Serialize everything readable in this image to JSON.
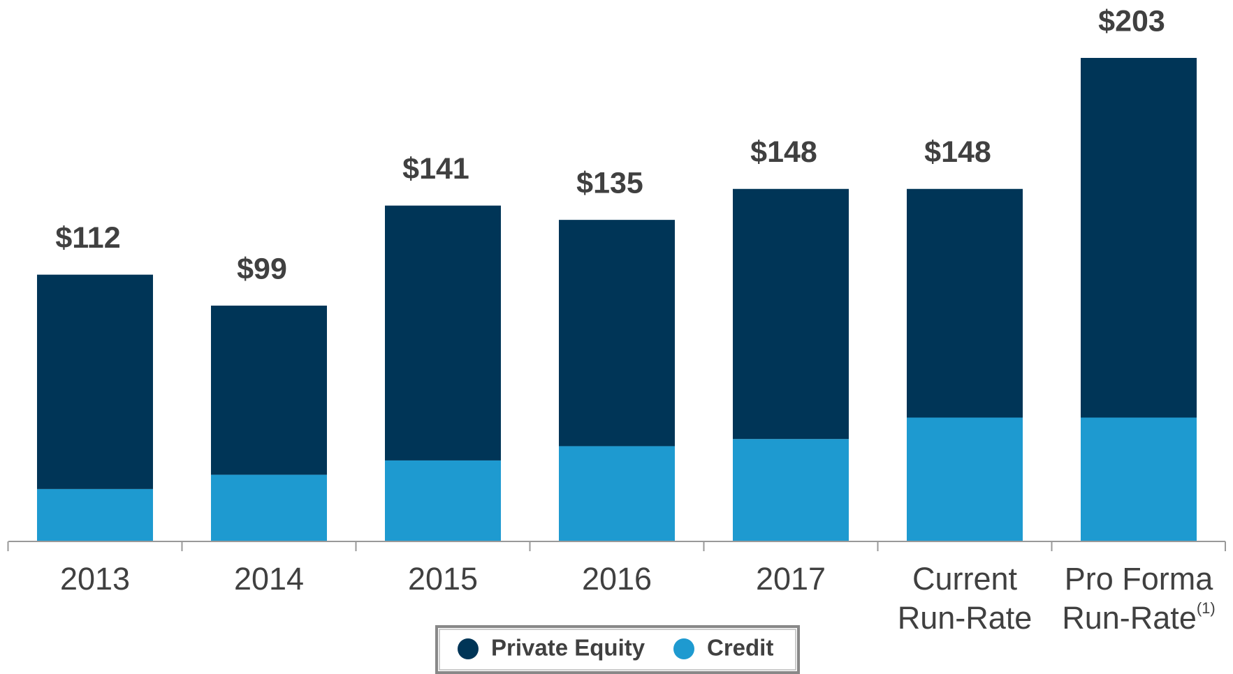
{
  "chart_data": {
    "type": "stacked_bar",
    "categories": [
      "2013",
      "2014",
      "2015",
      "2016",
      "2017",
      "Current\nRun-Rate",
      "Pro Forma\nRun-Rate"
    ],
    "category_notes": [
      null,
      null,
      null,
      null,
      null,
      null,
      "(1)"
    ],
    "series": [
      {
        "name": "Credit",
        "color": "#1e9ad0",
        "values": [
          22,
          28,
          34,
          40,
          43,
          52,
          52
        ]
      },
      {
        "name": "Private Equity",
        "color": "#003557",
        "values": [
          90,
          71,
          107,
          95,
          105,
          96,
          151
        ]
      }
    ],
    "total_values": [
      112,
      99,
      141,
      135,
      148,
      148,
      203
    ],
    "total_labels": [
      "$112",
      "$99",
      "$141",
      "$135",
      "$148",
      "$148",
      "$203"
    ],
    "legend_order": [
      1,
      0
    ],
    "ylim": [
      0,
      203
    ]
  }
}
